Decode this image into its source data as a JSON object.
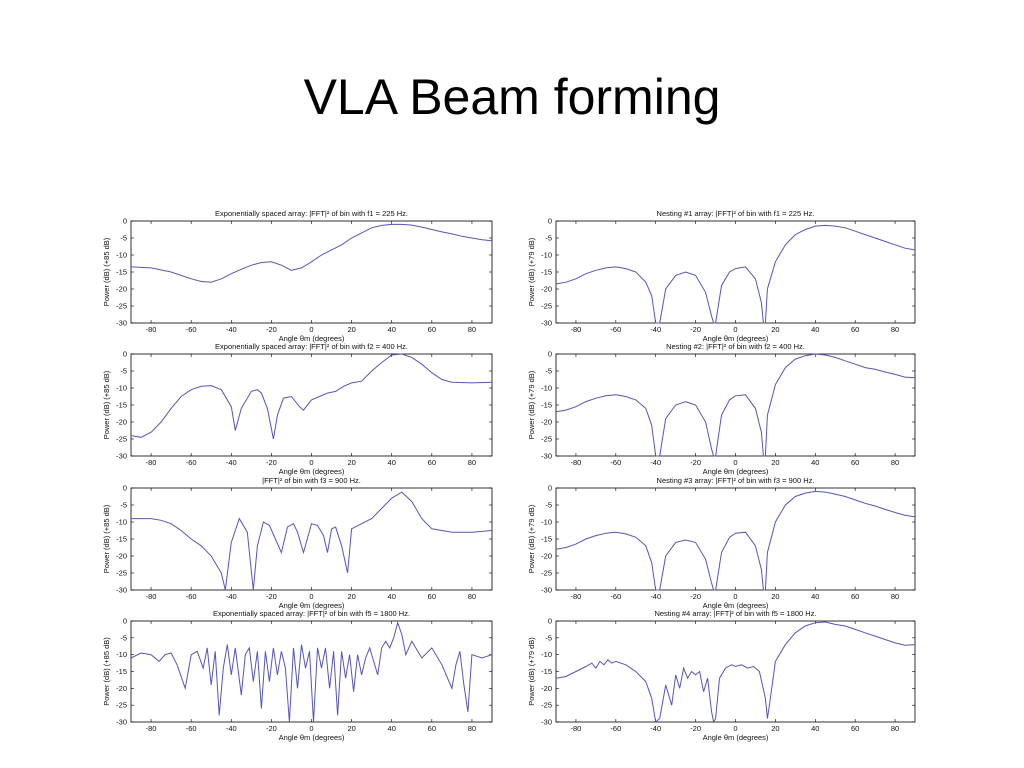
{
  "slide": {
    "title": "VLA Beam forming"
  },
  "chart_data": [
    {
      "type": "line",
      "title": "Exponentially spaced array: |FFT|² of bin with f1 = 225 Hz.",
      "ylabel": "Power (dB) (+85 dB)",
      "xlabel": "Angle θm (degrees)",
      "xlim": [
        -90,
        90
      ],
      "ylim": [
        -30,
        0
      ],
      "xticks": [
        -80,
        -60,
        -40,
        -20,
        0,
        20,
        40,
        60,
        80
      ],
      "yticks": [
        0,
        -5,
        -10,
        -15,
        -20,
        -25,
        -30
      ],
      "series": [
        {
          "x": [
            -90,
            -80,
            -70,
            -60,
            -55,
            -50,
            -45,
            -40,
            -35,
            -30,
            -25,
            -20,
            -15,
            -10,
            -5,
            0,
            5,
            10,
            15,
            20,
            25,
            30,
            35,
            40,
            45,
            50,
            55,
            60,
            65,
            70,
            75,
            80,
            85,
            90
          ],
          "y": [
            -13.5,
            -13.8,
            -15,
            -17,
            -17.8,
            -18,
            -17,
            -15.5,
            -14.2,
            -13,
            -12.2,
            -12,
            -13,
            -14.5,
            -13.8,
            -12,
            -10,
            -8.5,
            -7,
            -5,
            -3.5,
            -2,
            -1.3,
            -1,
            -1,
            -1.2,
            -1.8,
            -2.5,
            -3.2,
            -3.8,
            -4.5,
            -5,
            -5.5,
            -5.8
          ]
        }
      ],
      "col": 0,
      "row": 0
    },
    {
      "type": "line",
      "title": "Exponentially spaced array: |FFT|² of bin with f2 = 400 Hz.",
      "ylabel": "Power (dB) (+85 dB)",
      "xlabel": "Angle θm (degrees)",
      "xlim": [
        -90,
        90
      ],
      "ylim": [
        -30,
        0
      ],
      "xticks": [
        -80,
        -60,
        -40,
        -20,
        0,
        20,
        40,
        60,
        80
      ],
      "yticks": [
        0,
        -5,
        -10,
        -15,
        -20,
        -25,
        -30
      ],
      "series": [
        {
          "x": [
            -90,
            -85,
            -80,
            -75,
            -70,
            -65,
            -60,
            -55,
            -50,
            -45,
            -40,
            -38,
            -35,
            -30,
            -27,
            -25,
            -22,
            -19,
            -17,
            -14,
            -10,
            -6,
            -4,
            0,
            4,
            8,
            12,
            16,
            20,
            25,
            30,
            35,
            40,
            45,
            50,
            55,
            60,
            65,
            70,
            80,
            90
          ],
          "y": [
            -24,
            -24.5,
            -23,
            -20,
            -16,
            -12.5,
            -10.5,
            -9.5,
            -9.3,
            -10.5,
            -15.5,
            -22.5,
            -16,
            -11,
            -10.5,
            -11.5,
            -16,
            -25,
            -18,
            -13,
            -12.5,
            -15.5,
            -16.5,
            -13.5,
            -12.5,
            -11.5,
            -11,
            -9.5,
            -8.5,
            -8,
            -5,
            -2.5,
            -0.3,
            0,
            -1,
            -3,
            -5.5,
            -7.5,
            -8.3,
            -8.5,
            -8.3
          ]
        }
      ],
      "col": 0,
      "row": 1
    },
    {
      "type": "line",
      "title": "|FFT|² of bin with f3 = 900 Hz.",
      "ylabel": "Power (dB) (+85 dB)",
      "xlabel": "Angle θm (degrees)",
      "xlim": [
        -90,
        90
      ],
      "ylim": [
        -30,
        0
      ],
      "xticks": [
        -80,
        -60,
        -40,
        -20,
        0,
        20,
        40,
        60,
        80
      ],
      "yticks": [
        0,
        -5,
        -10,
        -15,
        -20,
        -25,
        -30
      ],
      "series": [
        {
          "x": [
            -90,
            -80,
            -75,
            -70,
            -65,
            -60,
            -55,
            -50,
            -45,
            -43,
            -40,
            -36,
            -32,
            -29,
            -27,
            -24,
            -21,
            -18,
            -15,
            -12,
            -9,
            -7,
            -4,
            0,
            3,
            6,
            8,
            10,
            12,
            15,
            18,
            20,
            25,
            30,
            35,
            40,
            45,
            50,
            55,
            60,
            70,
            80,
            90
          ],
          "y": [
            -9,
            -9,
            -9.5,
            -10.5,
            -12.5,
            -15,
            -17,
            -20,
            -25,
            -30,
            -16,
            -9,
            -13,
            -30,
            -17,
            -10,
            -11,
            -15,
            -19,
            -11.5,
            -10.5,
            -13,
            -19,
            -10.5,
            -11,
            -14,
            -19,
            -12,
            -11.5,
            -17,
            -25,
            -12,
            -10.5,
            -9,
            -6,
            -3,
            -1.2,
            -4,
            -9,
            -12,
            -13,
            -13,
            -12.5
          ]
        }
      ],
      "col": 0,
      "row": 2
    },
    {
      "type": "line",
      "title": "Exponentially spaced array: |FFT|² of bin with f5 = 1800 Hz.",
      "ylabel": "Power (dB) (+85 dB)",
      "xlabel": "Angle θm (degrees)",
      "xlim": [
        -90,
        90
      ],
      "ylim": [
        -30,
        0
      ],
      "xticks": [
        -80,
        -60,
        -40,
        -20,
        0,
        20,
        40,
        60,
        80
      ],
      "yticks": [
        0,
        -5,
        -10,
        -15,
        -20,
        -25,
        -30
      ],
      "series": [
        {
          "x": [
            -90,
            -85,
            -80,
            -76,
            -73,
            -70,
            -67,
            -63,
            -60,
            -57,
            -54,
            -52,
            -50,
            -48,
            -46,
            -44,
            -42,
            -40,
            -38,
            -35,
            -33,
            -31,
            -29,
            -27,
            -25,
            -23,
            -21,
            -19,
            -17,
            -15,
            -13,
            -11,
            -9,
            -7,
            -5,
            -3,
            -1,
            1,
            3,
            5,
            7,
            9,
            11,
            13,
            15,
            17,
            19,
            21,
            23,
            25,
            27,
            29,
            31,
            33,
            35,
            37,
            39,
            41,
            43,
            45,
            47,
            50,
            55,
            60,
            65,
            70,
            72,
            74,
            76,
            78,
            80,
            85,
            90
          ],
          "y": [
            -11,
            -9.5,
            -10,
            -12,
            -10,
            -9.5,
            -13,
            -20,
            -10,
            -9,
            -14,
            -8,
            -19,
            -9,
            -28,
            -14,
            -7,
            -16,
            -8,
            -22,
            -10,
            -8,
            -18,
            -9,
            -26,
            -9,
            -18,
            -8,
            -16,
            -9,
            -14,
            -30,
            -8,
            -20,
            -7,
            -14,
            -9,
            -30,
            -8,
            -14,
            -8,
            -20,
            -9,
            -28,
            -9,
            -17,
            -10,
            -21,
            -10,
            -16,
            -11,
            -8,
            -12,
            -16,
            -8,
            -6,
            -8,
            -5,
            -0.5,
            -4,
            -10,
            -6,
            -11,
            -8,
            -13,
            -20,
            -13,
            -9,
            -19,
            -27,
            -10,
            -11,
            -10
          ]
        }
      ],
      "col": 0,
      "row": 3
    },
    {
      "type": "line",
      "title": "Nesting #1 array: |FFT|² of bin with f1 = 225 Hz.",
      "ylabel": "Power (dB) (+79 dB)",
      "xlabel": "Angle θm (degrees)",
      "xlim": [
        -90,
        90
      ],
      "ylim": [
        -30,
        0
      ],
      "xticks": [
        -80,
        -60,
        -40,
        -20,
        0,
        20,
        40,
        60,
        80
      ],
      "yticks": [
        0,
        -5,
        -10,
        -15,
        -20,
        -25,
        -30
      ],
      "series": [
        {
          "x": [
            -90,
            -85,
            -80,
            -75,
            -70,
            -65,
            -60,
            -55,
            -50,
            -45,
            -42,
            -40,
            -38,
            -35,
            -30,
            -25,
            -20,
            -15,
            -12,
            -11,
            -10,
            -7,
            -3,
            0,
            5,
            10,
            13,
            14,
            15,
            16,
            20,
            25,
            30,
            35,
            40,
            45,
            50,
            55,
            60,
            65,
            70,
            75,
            80,
            85,
            90
          ],
          "y": [
            -18.5,
            -18,
            -17,
            -15.5,
            -14.5,
            -13.8,
            -13.5,
            -14,
            -15,
            -18,
            -22,
            -30,
            -30,
            -20,
            -16,
            -15,
            -16,
            -21,
            -28,
            -30,
            -30,
            -19,
            -15,
            -14,
            -13.5,
            -17,
            -24,
            -30,
            -30,
            -20,
            -12,
            -7,
            -4,
            -2.5,
            -1.5,
            -1.3,
            -1.5,
            -2,
            -3,
            -4,
            -5,
            -6,
            -7,
            -8,
            -8.5
          ]
        }
      ],
      "col": 1,
      "row": 0
    },
    {
      "type": "line",
      "title": "Nesting #2: |FFT|² of bin with f2 = 400 Hz.",
      "ylabel": "Power (dB) (+79 dB)",
      "xlabel": "Angle θm (degrees)",
      "xlim": [
        -90,
        90
      ],
      "ylim": [
        -30,
        0
      ],
      "xticks": [
        -80,
        -60,
        -40,
        -20,
        0,
        20,
        40,
        60,
        80
      ],
      "yticks": [
        0,
        -5,
        -10,
        -15,
        -20,
        -25,
        -30
      ],
      "series": [
        {
          "x": [
            -90,
            -85,
            -80,
            -75,
            -70,
            -65,
            -60,
            -55,
            -50,
            -45,
            -42,
            -40,
            -38,
            -35,
            -30,
            -25,
            -20,
            -15,
            -12,
            -11,
            -10,
            -7,
            -3,
            0,
            5,
            10,
            13,
            14,
            15,
            16,
            20,
            25,
            30,
            35,
            40,
            45,
            50,
            55,
            60,
            65,
            70,
            75,
            80,
            85,
            90
          ],
          "y": [
            -17,
            -16.5,
            -15.5,
            -14,
            -13,
            -12.3,
            -12,
            -12.5,
            -13.5,
            -16,
            -21,
            -30,
            -30,
            -19,
            -15,
            -14,
            -15,
            -20,
            -28,
            -30,
            -30,
            -18,
            -13.5,
            -12.3,
            -12,
            -16,
            -23,
            -30,
            -30,
            -18,
            -9,
            -4,
            -1.5,
            -0.5,
            0,
            -0.3,
            -1,
            -2,
            -3,
            -4,
            -4.5,
            -5.3,
            -6,
            -6.8,
            -7
          ]
        }
      ],
      "col": 1,
      "row": 1
    },
    {
      "type": "line",
      "title": "Nesting #3 array: |FFT|² of bin with f3 = 900 Hz.",
      "ylabel": "Power (dB) (+79 dB)",
      "xlabel": "Angle θm (degrees)",
      "xlim": [
        -90,
        90
      ],
      "ylim": [
        -30,
        0
      ],
      "xticks": [
        -80,
        -60,
        -40,
        -20,
        0,
        20,
        40,
        60,
        80
      ],
      "yticks": [
        0,
        -5,
        -10,
        -15,
        -20,
        -25,
        -30
      ],
      "series": [
        {
          "x": [
            -90,
            -85,
            -80,
            -75,
            -70,
            -65,
            -60,
            -55,
            -50,
            -45,
            -42,
            -40,
            -38,
            -35,
            -30,
            -25,
            -20,
            -15,
            -12,
            -11,
            -10,
            -7,
            -3,
            0,
            5,
            10,
            13,
            14,
            15,
            16,
            20,
            25,
            30,
            35,
            40,
            45,
            50,
            55,
            60,
            65,
            70,
            75,
            80,
            85,
            90
          ],
          "y": [
            -18,
            -17.5,
            -16.5,
            -15,
            -14,
            -13.3,
            -13,
            -13.5,
            -14.5,
            -17,
            -22,
            -30,
            -30,
            -20,
            -16,
            -15.3,
            -16,
            -21,
            -28,
            -30,
            -30,
            -19,
            -14.5,
            -13.3,
            -13,
            -17,
            -24,
            -30,
            -30,
            -19,
            -10,
            -5,
            -2.5,
            -1.5,
            -1,
            -1.2,
            -1.8,
            -2.5,
            -3.5,
            -4.5,
            -5.3,
            -6.3,
            -7.2,
            -8,
            -8.5
          ]
        }
      ],
      "col": 1,
      "row": 2
    },
    {
      "type": "line",
      "title": "Nesting #4 array: |FFT|² of bin with f5 = 1800 Hz.",
      "ylabel": "Power (dB) (+79 dB)",
      "xlabel": "Angle θm (degrees)",
      "xlim": [
        -90,
        90
      ],
      "ylim": [
        -30,
        0
      ],
      "xticks": [
        -80,
        -60,
        -40,
        -20,
        0,
        20,
        40,
        60,
        80
      ],
      "yticks": [
        0,
        -5,
        -10,
        -15,
        -20,
        -25,
        -30
      ],
      "series": [
        {
          "x": [
            -90,
            -85,
            -80,
            -75,
            -72,
            -70,
            -68,
            -66,
            -64,
            -62,
            -60,
            -55,
            -50,
            -45,
            -42,
            -40,
            -38,
            -35,
            -32,
            -30,
            -28,
            -26,
            -24,
            -22,
            -20,
            -18,
            -16,
            -14,
            -12,
            -11,
            -10,
            -8,
            -5,
            -2,
            0,
            3,
            6,
            9,
            12,
            15,
            16,
            17,
            20,
            25,
            30,
            35,
            40,
            45,
            50,
            55,
            60,
            65,
            70,
            75,
            80,
            85,
            90
          ],
          "y": [
            -17,
            -16.5,
            -15,
            -13.5,
            -12.5,
            -14,
            -12,
            -13,
            -11.5,
            -12.5,
            -12,
            -13,
            -15,
            -18,
            -23,
            -30,
            -29,
            -19,
            -25,
            -16,
            -20,
            -14,
            -17,
            -15,
            -16,
            -15,
            -21,
            -17,
            -27,
            -30,
            -29,
            -17,
            -14,
            -13,
            -13.5,
            -13,
            -14,
            -13.5,
            -15,
            -23,
            -29,
            -25,
            -12,
            -7,
            -3.5,
            -1.5,
            -0.5,
            -0.3,
            -1,
            -1.5,
            -2.5,
            -3.5,
            -4.5,
            -5.5,
            -6.5,
            -7.2,
            -7
          ]
        }
      ],
      "col": 1,
      "row": 3
    }
  ],
  "colors": {
    "line": "#5555bb",
    "axis": "#000000"
  }
}
